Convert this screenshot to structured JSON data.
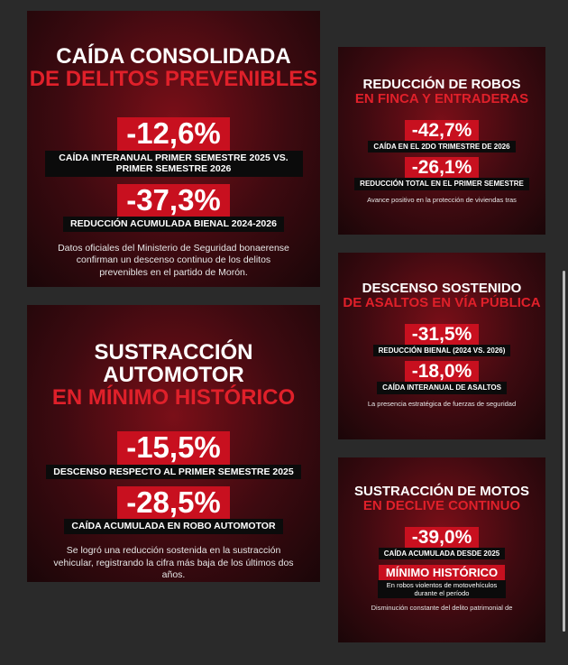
{
  "cards": [
    {
      "title": "CAÍDA CONSOLIDADA",
      "subtitle": "DE DELITOS PREVENIBLES",
      "stats": [
        {
          "value": "-12,6%",
          "caption": "CAÍDA INTERANUAL PRIMER SEMESTRE 2025 VS. PRIMER SEMESTRE 2026"
        },
        {
          "value": "-37,3%",
          "caption": "REDUCCIÓN ACUMULADA BIENAL 2024-2026"
        }
      ],
      "footer": "Datos oficiales del Ministerio de Seguridad bonaerense confirman un descenso continuo de los delitos prevenibles en el partido de Morón."
    },
    {
      "title": "SUSTRACCIÓN AUTOMOTOR",
      "subtitle": "EN MÍNIMO HISTÓRICO",
      "stats": [
        {
          "value": "-15,5%",
          "caption": "DESCENSO RESPECTO AL PRIMER SEMESTRE 2025"
        },
        {
          "value": "-28,5%",
          "caption": "CAÍDA ACUMULADA EN ROBO AUTOMOTOR"
        }
      ],
      "footer": "Se logró una reducción sostenida en la sustracción vehicular, registrando la cifra más baja de los últimos dos años."
    },
    {
      "title": "REDUCCIÓN DE ROBOS",
      "subtitle": "EN FINCA Y ENTRADERAS",
      "stats": [
        {
          "value": "-42,7%",
          "caption": "CAÍDA EN EL 2DO TRIMESTRE DE 2026"
        },
        {
          "value": "-26,1%",
          "caption": "REDUCCIÓN TOTAL EN EL PRIMER SEMESTRE"
        }
      ],
      "footer": "Avance positivo en la protección de viviendas tras"
    },
    {
      "title": "DESCENSO SOSTENIDO",
      "subtitle": "DE ASALTOS EN VÍA PÚBLICA",
      "stats": [
        {
          "value": "-31,5%",
          "caption": "REDUCCIÓN BIENAL (2024 VS. 2026)"
        },
        {
          "value": "-18,0%",
          "caption": "CAÍDA INTERANUAL DE ASALTOS"
        }
      ],
      "footer": "La presencia estratégica de fuerzas de seguridad"
    },
    {
      "title": "SUSTRACCIÓN DE MOTOS",
      "subtitle": "EN DECLIVE CONTINUO",
      "stats": [
        {
          "value": "-39,0%",
          "caption": "CAÍDA ACUMULADA DESDE 2025"
        }
      ],
      "badge": "MÍNIMO HISTÓRICO",
      "badge_text": "En robos violentos de motovehículos durante el período",
      "footer": "Disminución constante del delito patrimonial de"
    }
  ]
}
